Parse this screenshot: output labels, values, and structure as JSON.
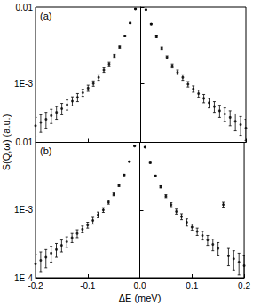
{
  "chart_data": [
    {
      "type": "scatter",
      "annotation": "(a)",
      "ylabel": "S(Q,ω) (a.u.)",
      "log": "y",
      "grid": false,
      "tick_labels": "y",
      "xlim": [
        -0.2,
        0.2
      ],
      "xticks": [
        -0.2,
        -0.1,
        {
          "value": 0,
          "label": "0.0"
        },
        0.1,
        0.2
      ],
      "ylim": [
        0.00017,
        0.01
      ],
      "yticks": [
        0.01,
        {
          "value": 0.001,
          "label": "1E-3"
        }
      ],
      "series": [
        {
          "color": "#000000",
          "marker": "circle",
          "x": [
            -0.2,
            -0.19,
            -0.18,
            -0.17,
            -0.16,
            -0.15,
            -0.14,
            -0.13,
            -0.12,
            -0.11,
            -0.1,
            -0.09,
            -0.08,
            -0.07,
            -0.06,
            -0.05,
            -0.04,
            -0.03,
            -0.02,
            -0.01,
            0.01,
            0.02,
            0.03,
            0.04,
            0.05,
            0.06,
            0.07,
            0.08,
            0.09,
            0.1,
            0.11,
            0.12,
            0.13,
            0.14,
            0.15,
            0.16,
            0.17,
            0.18,
            0.19,
            0.2
          ],
          "values": [
            0.00028,
            0.00031,
            0.00034,
            0.00038,
            0.00042,
            0.00047,
            0.00053,
            0.00059,
            0.00066,
            0.00076,
            0.00087,
            0.001,
            0.0012,
            0.0015,
            0.0018,
            0.0023,
            0.003,
            0.0042,
            0.0062,
            0.0095,
            0.0093,
            0.006,
            0.0041,
            0.0029,
            0.0022,
            0.0017,
            0.0014,
            0.0012,
            0.00098,
            0.00085,
            0.00074,
            0.00064,
            0.00056,
            0.0005,
            0.00044,
            0.0004,
            0.00036,
            0.00032,
            0.00029,
            0.00026
          ],
          "errors": [
            8e-05,
            8e-05,
            8e-05,
            8e-05,
            8e-05,
            8e-05,
            8e-05,
            8e-05,
            8e-05,
            8e-05,
            8e-05,
            8e-05,
            0.0001,
            0.0001,
            0.0001,
            0.0001,
            0.0001,
            0.0001,
            0.0001,
            0.0001,
            0.0001,
            0.0001,
            0.0001,
            0.0001,
            0.0001,
            0.0001,
            0.0001,
            0.0001,
            8e-05,
            8e-05,
            8e-05,
            8e-05,
            8e-05,
            8e-05,
            8e-05,
            8e-05,
            8e-05,
            8e-05,
            8e-05,
            8e-05
          ]
        }
      ]
    },
    {
      "type": "scatter",
      "annotation": "(b)",
      "xlabel": "ΔE (meV)",
      "log": "y",
      "grid": false,
      "xlim": [
        -0.2,
        0.2
      ],
      "xticks": [
        -0.2,
        -0.1,
        {
          "value": 0,
          "label": "0.0"
        },
        0.1,
        0.2
      ],
      "ylim": [
        0.0001,
        0.01
      ],
      "yticks": [
        0.01,
        {
          "value": 0.001,
          "label": "1E-3"
        },
        {
          "value": 0.0001,
          "label": "1E-4"
        }
      ],
      "series": [
        {
          "color": "#000000",
          "marker": "circle",
          "x": [
            -0.2,
            -0.19,
            -0.18,
            -0.17,
            -0.16,
            -0.15,
            -0.14,
            -0.13,
            -0.12,
            -0.11,
            -0.1,
            -0.09,
            -0.08,
            -0.07,
            -0.06,
            -0.05,
            -0.04,
            -0.03,
            -0.02,
            -0.01,
            0.01,
            0.02,
            0.03,
            0.04,
            0.05,
            0.06,
            0.07,
            0.08,
            0.09,
            0.1,
            0.11,
            0.12,
            0.13,
            0.14,
            0.15,
            0.16,
            0.17,
            0.18,
            0.19,
            0.2
          ],
          "values": [
            0.00016,
            0.00018,
            0.0002,
            0.00023,
            0.00026,
            0.0003,
            0.00034,
            0.00039,
            0.00045,
            0.00052,
            0.0006,
            0.0007,
            0.00085,
            0.001,
            0.0013,
            0.0017,
            0.0023,
            0.0033,
            0.0052,
            0.0088,
            0.0085,
            0.005,
            0.0032,
            0.0022,
            0.0016,
            0.0012,
            0.00095,
            0.0008,
            0.00066,
            0.00056,
            0.00048,
            0.00042,
            0.00036,
            0.00031,
            0.00027,
            0.0012,
            0.00021,
            0.00019,
            0.00017,
            0.00015
          ],
          "errors": [
            6e-05,
            6e-05,
            6e-05,
            6e-05,
            6e-05,
            6e-05,
            6e-05,
            6e-05,
            6e-05,
            6e-05,
            6e-05,
            8e-05,
            8e-05,
            8e-05,
            8e-05,
            8e-05,
            8e-05,
            8e-05,
            8e-05,
            8e-05,
            8e-05,
            8e-05,
            8e-05,
            8e-05,
            8e-05,
            8e-05,
            8e-05,
            8e-05,
            8e-05,
            6e-05,
            6e-05,
            6e-05,
            6e-05,
            6e-05,
            6e-05,
            0.0001,
            6e-05,
            6e-05,
            6e-05,
            6e-05
          ]
        }
      ]
    }
  ]
}
